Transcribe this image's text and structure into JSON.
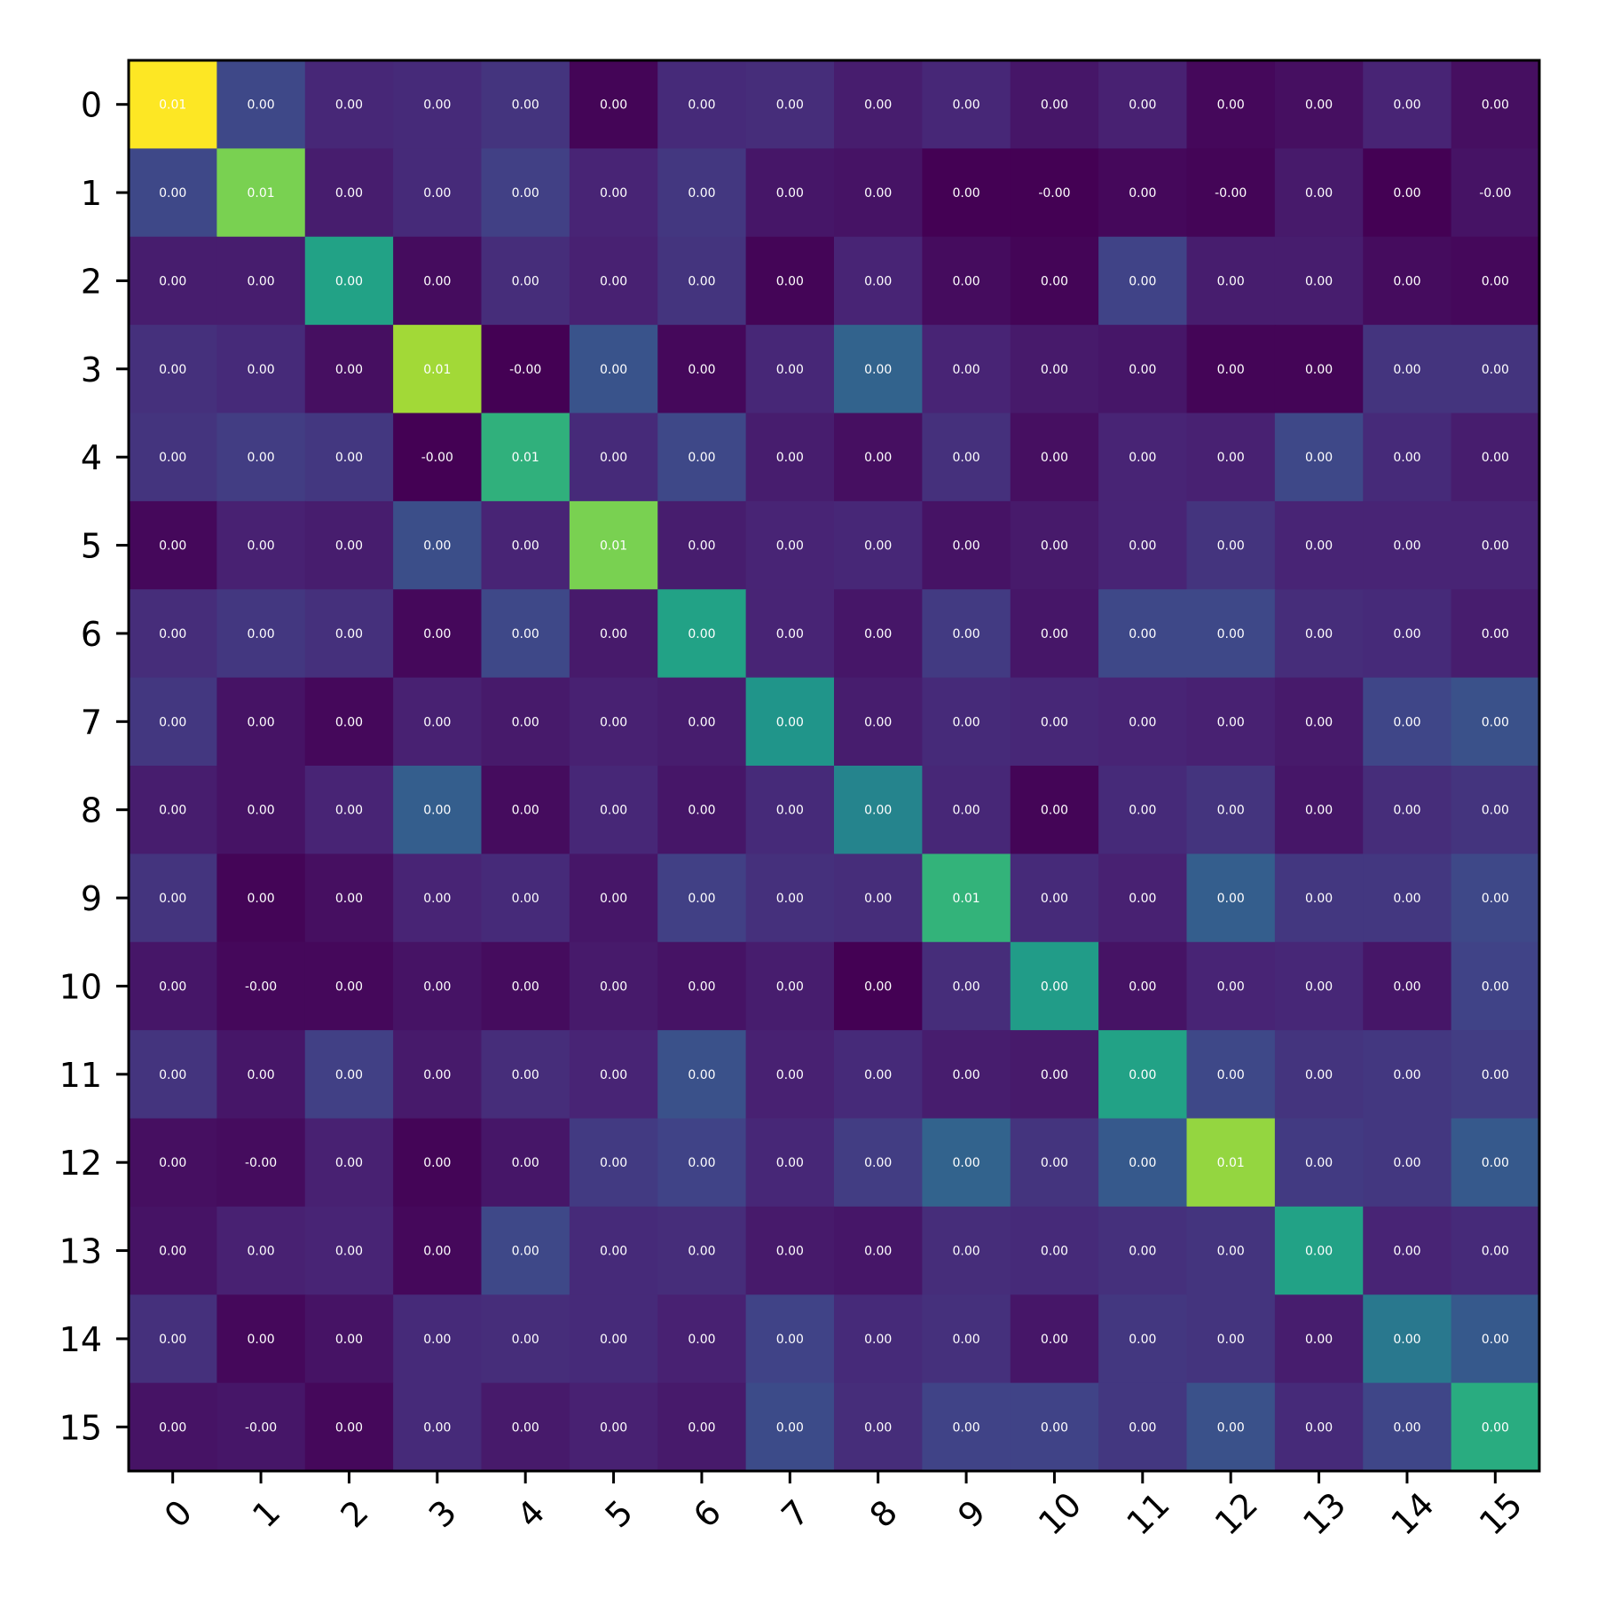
{
  "chart_data": {
    "type": "heatmap",
    "title": "",
    "xlabel": "",
    "ylabel": "",
    "colormap": "viridis",
    "x_categories": [
      "0",
      "1",
      "2",
      "3",
      "4",
      "5",
      "6",
      "7",
      "8",
      "9",
      "10",
      "11",
      "12",
      "13",
      "14",
      "15"
    ],
    "y_categories": [
      "0",
      "1",
      "2",
      "3",
      "4",
      "5",
      "6",
      "7",
      "8",
      "9",
      "10",
      "11",
      "12",
      "13",
      "14",
      "15"
    ],
    "x_tick_rotation_deg": 45,
    "cell_labels": [
      [
        "0.01",
        "0.00",
        "0.00",
        "0.00",
        "0.00",
        "0.00",
        "0.00",
        "0.00",
        "0.00",
        "0.00",
        "0.00",
        "0.00",
        "0.00",
        "0.00",
        "0.00",
        "0.00"
      ],
      [
        "0.00",
        "0.01",
        "0.00",
        "0.00",
        "0.00",
        "0.00",
        "0.00",
        "0.00",
        "0.00",
        "0.00",
        "-0.00",
        "0.00",
        "-0.00",
        "0.00",
        "0.00",
        "-0.00"
      ],
      [
        "0.00",
        "0.00",
        "0.00",
        "0.00",
        "0.00",
        "0.00",
        "0.00",
        "0.00",
        "0.00",
        "0.00",
        "0.00",
        "0.00",
        "0.00",
        "0.00",
        "0.00",
        "0.00"
      ],
      [
        "0.00",
        "0.00",
        "0.00",
        "0.01",
        "-0.00",
        "0.00",
        "0.00",
        "0.00",
        "0.00",
        "0.00",
        "0.00",
        "0.00",
        "0.00",
        "0.00",
        "0.00",
        "0.00"
      ],
      [
        "0.00",
        "0.00",
        "0.00",
        "-0.00",
        "0.01",
        "0.00",
        "0.00",
        "0.00",
        "0.00",
        "0.00",
        "0.00",
        "0.00",
        "0.00",
        "0.00",
        "0.00",
        "0.00"
      ],
      [
        "0.00",
        "0.00",
        "0.00",
        "0.00",
        "0.00",
        "0.01",
        "0.00",
        "0.00",
        "0.00",
        "0.00",
        "0.00",
        "0.00",
        "0.00",
        "0.00",
        "0.00",
        "0.00"
      ],
      [
        "0.00",
        "0.00",
        "0.00",
        "0.00",
        "0.00",
        "0.00",
        "0.00",
        "0.00",
        "0.00",
        "0.00",
        "0.00",
        "0.00",
        "0.00",
        "0.00",
        "0.00",
        "0.00"
      ],
      [
        "0.00",
        "0.00",
        "0.00",
        "0.00",
        "0.00",
        "0.00",
        "0.00",
        "0.00",
        "0.00",
        "0.00",
        "0.00",
        "0.00",
        "0.00",
        "0.00",
        "0.00",
        "0.00"
      ],
      [
        "0.00",
        "0.00",
        "0.00",
        "0.00",
        "0.00",
        "0.00",
        "0.00",
        "0.00",
        "0.00",
        "0.00",
        "0.00",
        "0.00",
        "0.00",
        "0.00",
        "0.00",
        "0.00"
      ],
      [
        "0.00",
        "0.00",
        "0.00",
        "0.00",
        "0.00",
        "0.00",
        "0.00",
        "0.00",
        "0.00",
        "0.01",
        "0.00",
        "0.00",
        "0.00",
        "0.00",
        "0.00",
        "0.00"
      ],
      [
        "0.00",
        "-0.00",
        "0.00",
        "0.00",
        "0.00",
        "0.00",
        "0.00",
        "0.00",
        "0.00",
        "0.00",
        "0.00",
        "0.00",
        "0.00",
        "0.00",
        "0.00",
        "0.00"
      ],
      [
        "0.00",
        "0.00",
        "0.00",
        "0.00",
        "0.00",
        "0.00",
        "0.00",
        "0.00",
        "0.00",
        "0.00",
        "0.00",
        "0.00",
        "0.00",
        "0.00",
        "0.00",
        "0.00"
      ],
      [
        "0.00",
        "-0.00",
        "0.00",
        "0.00",
        "0.00",
        "0.00",
        "0.00",
        "0.00",
        "0.00",
        "0.00",
        "0.00",
        "0.00",
        "0.01",
        "0.00",
        "0.00",
        "0.00"
      ],
      [
        "0.00",
        "0.00",
        "0.00",
        "0.00",
        "0.00",
        "0.00",
        "0.00",
        "0.00",
        "0.00",
        "0.00",
        "0.00",
        "0.00",
        "0.00",
        "0.00",
        "0.00",
        "0.00"
      ],
      [
        "0.00",
        "0.00",
        "0.00",
        "0.00",
        "0.00",
        "0.00",
        "0.00",
        "0.00",
        "0.00",
        "0.00",
        "0.00",
        "0.00",
        "0.00",
        "0.00",
        "0.00",
        "0.00"
      ],
      [
        "0.00",
        "-0.00",
        "0.00",
        "0.00",
        "0.00",
        "0.00",
        "0.00",
        "0.00",
        "0.00",
        "0.00",
        "0.00",
        "0.00",
        "0.00",
        "0.00",
        "0.00",
        "0.00"
      ]
    ],
    "color_levels": [
      [
        1.0,
        0.22,
        0.11,
        0.12,
        0.15,
        0.01,
        0.12,
        0.13,
        0.08,
        0.11,
        0.06,
        0.09,
        0.02,
        0.04,
        0.1,
        0.04
      ],
      [
        0.22,
        0.8,
        0.08,
        0.12,
        0.19,
        0.1,
        0.16,
        0.06,
        0.05,
        0.0,
        0.0,
        0.02,
        0.01,
        0.07,
        0.0,
        0.05
      ],
      [
        0.08,
        0.08,
        0.58,
        0.03,
        0.13,
        0.09,
        0.15,
        0.01,
        0.1,
        0.03,
        0.01,
        0.2,
        0.08,
        0.08,
        0.03,
        0.02
      ],
      [
        0.14,
        0.12,
        0.04,
        0.86,
        0.0,
        0.26,
        0.02,
        0.11,
        0.32,
        0.1,
        0.07,
        0.06,
        0.01,
        0.01,
        0.15,
        0.15
      ],
      [
        0.15,
        0.18,
        0.16,
        0.0,
        0.64,
        0.12,
        0.22,
        0.08,
        0.04,
        0.14,
        0.04,
        0.1,
        0.09,
        0.22,
        0.12,
        0.08
      ],
      [
        0.02,
        0.09,
        0.08,
        0.24,
        0.1,
        0.8,
        0.08,
        0.1,
        0.11,
        0.05,
        0.07,
        0.1,
        0.15,
        0.1,
        0.1,
        0.1
      ],
      [
        0.13,
        0.16,
        0.14,
        0.02,
        0.22,
        0.07,
        0.58,
        0.1,
        0.06,
        0.17,
        0.06,
        0.22,
        0.22,
        0.13,
        0.12,
        0.08
      ],
      [
        0.16,
        0.05,
        0.02,
        0.09,
        0.07,
        0.09,
        0.08,
        0.52,
        0.08,
        0.12,
        0.11,
        0.1,
        0.09,
        0.07,
        0.21,
        0.25
      ],
      [
        0.08,
        0.05,
        0.1,
        0.3,
        0.03,
        0.11,
        0.06,
        0.12,
        0.45,
        0.11,
        0.01,
        0.12,
        0.15,
        0.06,
        0.13,
        0.15
      ],
      [
        0.15,
        0.01,
        0.04,
        0.1,
        0.12,
        0.06,
        0.19,
        0.14,
        0.13,
        0.65,
        0.12,
        0.09,
        0.3,
        0.16,
        0.16,
        0.22
      ],
      [
        0.06,
        0.02,
        0.02,
        0.05,
        0.03,
        0.07,
        0.05,
        0.08,
        0.0,
        0.13,
        0.55,
        0.05,
        0.1,
        0.11,
        0.06,
        0.2
      ],
      [
        0.15,
        0.06,
        0.19,
        0.07,
        0.13,
        0.1,
        0.25,
        0.09,
        0.12,
        0.08,
        0.07,
        0.58,
        0.22,
        0.15,
        0.16,
        0.18
      ],
      [
        0.04,
        0.03,
        0.09,
        0.01,
        0.06,
        0.17,
        0.2,
        0.11,
        0.18,
        0.32,
        0.15,
        0.28,
        0.84,
        0.17,
        0.16,
        0.28
      ],
      [
        0.05,
        0.09,
        0.1,
        0.02,
        0.22,
        0.12,
        0.13,
        0.07,
        0.06,
        0.13,
        0.12,
        0.14,
        0.15,
        0.58,
        0.1,
        0.12
      ],
      [
        0.14,
        0.02,
        0.05,
        0.12,
        0.13,
        0.12,
        0.09,
        0.2,
        0.12,
        0.14,
        0.06,
        0.16,
        0.15,
        0.08,
        0.4,
        0.28
      ],
      [
        0.05,
        0.06,
        0.02,
        0.12,
        0.07,
        0.09,
        0.07,
        0.23,
        0.13,
        0.2,
        0.2,
        0.16,
        0.25,
        0.12,
        0.21,
        0.62
      ]
    ]
  }
}
